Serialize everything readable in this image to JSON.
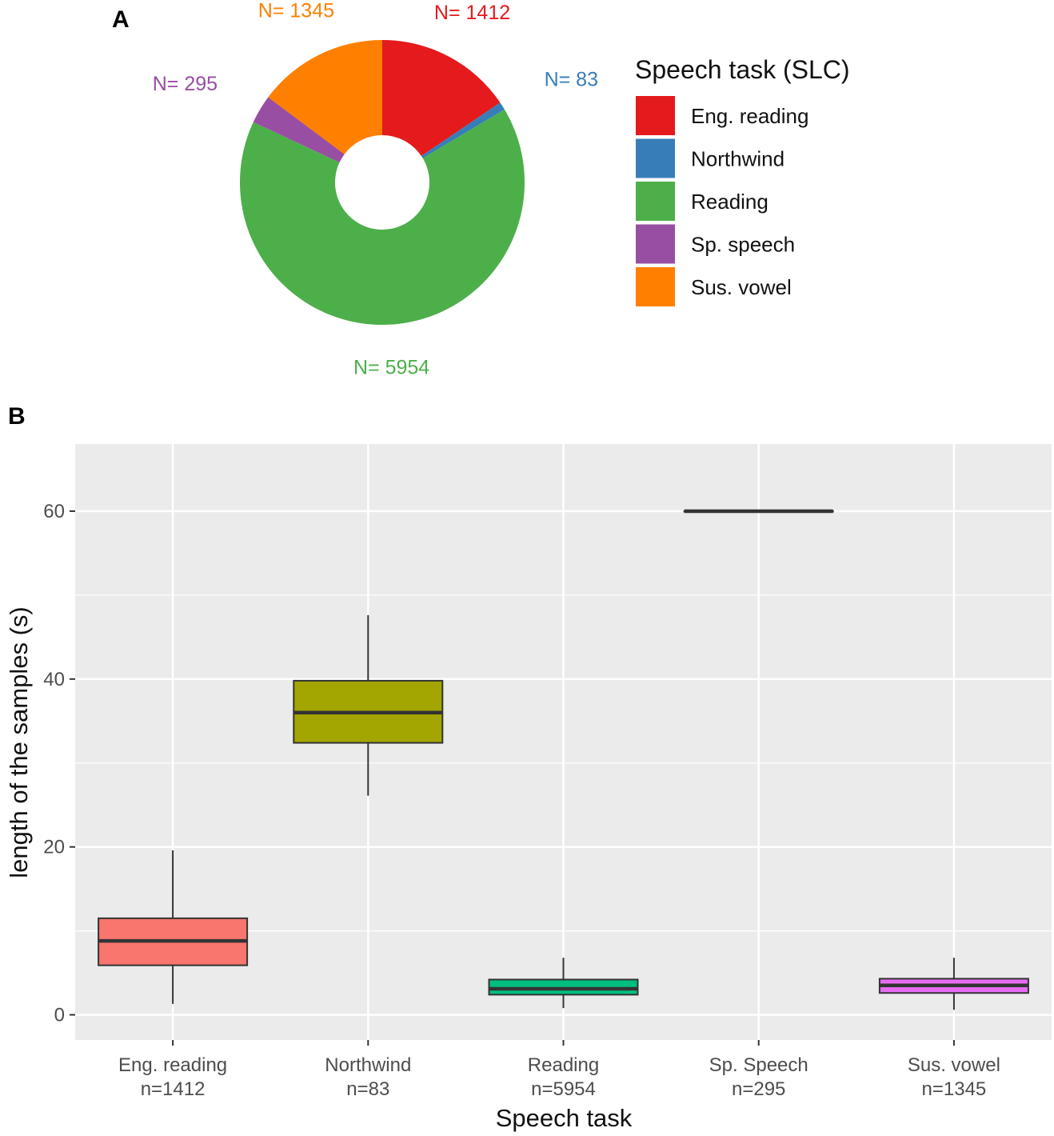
{
  "panels": {
    "a": "A",
    "b": "B"
  },
  "chart_data": [
    {
      "type": "pie",
      "variant": "donut",
      "legend_title": "Speech task (SLC)",
      "legend_position": "right",
      "slices": [
        {
          "name": "Eng. reading",
          "value": 1412,
          "label": "N= 1412",
          "color": "#E41A1C"
        },
        {
          "name": "Northwind",
          "value": 83,
          "label": "N= 83",
          "color": "#377EB8"
        },
        {
          "name": "Reading",
          "value": 5954,
          "label": "N= 5954",
          "color": "#4DAF4A"
        },
        {
          "name": "Sp. speech",
          "value": 295,
          "label": "N= 295",
          "color": "#984EA3"
        },
        {
          "name": "Sus. vowel",
          "value": 1345,
          "label": "N= 1345",
          "color": "#FF7F00"
        }
      ]
    },
    {
      "type": "box",
      "xlabel": "Speech task",
      "ylabel": "length of the samples (s)",
      "ylim": [
        -3,
        68
      ],
      "yticks": [
        0,
        20,
        40,
        60
      ],
      "grid": true,
      "background": "#EBEBEB",
      "categories": [
        {
          "name": "Eng. reading",
          "n_label": "n=1412",
          "color": "#F8766D",
          "min": 1.3,
          "q1": 5.9,
          "median": 8.8,
          "q3": 11.5,
          "max": 19.6
        },
        {
          "name": "Northwind",
          "n_label": "n=83",
          "color": "#A3A500",
          "min": 26.1,
          "q1": 32.4,
          "median": 36.0,
          "q3": 39.8,
          "max": 47.6
        },
        {
          "name": "Reading",
          "n_label": "n=5954",
          "color": "#00BF7D",
          "min": 0.8,
          "q1": 2.4,
          "median": 3.1,
          "q3": 4.2,
          "max": 6.8
        },
        {
          "name": "Sp. Speech",
          "n_label": "n=295",
          "color": "#00B0F6",
          "min": 60.0,
          "q1": 60.0,
          "median": 60.0,
          "q3": 60.0,
          "max": 60.0
        },
        {
          "name": "Sus. vowel",
          "n_label": "n=1345",
          "color": "#E76BF3",
          "min": 0.6,
          "q1": 2.6,
          "median": 3.5,
          "q3": 4.3,
          "max": 6.8
        }
      ]
    }
  ]
}
